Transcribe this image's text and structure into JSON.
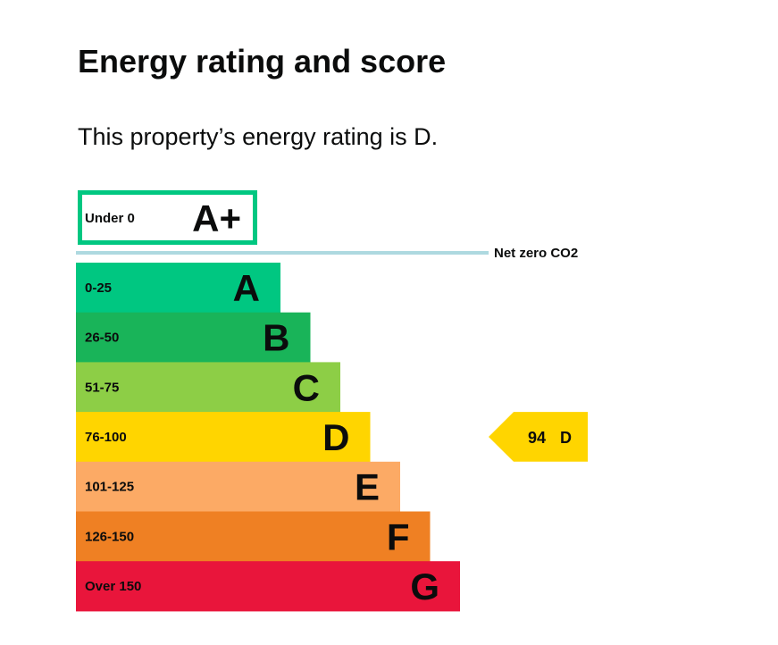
{
  "page": {
    "title": "Energy rating and score",
    "intro": "This property’s energy rating is D."
  },
  "chart_data": {
    "type": "bar",
    "title": "",
    "bands": [
      {
        "range": "Under 0",
        "letter": "A+",
        "color": "#00c781",
        "style": "outline"
      },
      {
        "range": "0-25",
        "letter": "A",
        "color": "#00c781"
      },
      {
        "range": "26-50",
        "letter": "B",
        "color": "#19b459"
      },
      {
        "range": "51-75",
        "letter": "C",
        "color": "#8dce46"
      },
      {
        "range": "76-100",
        "letter": "D",
        "color": "#ffd500"
      },
      {
        "range": "101-125",
        "letter": "E",
        "color": "#fcaa65"
      },
      {
        "range": "126-150",
        "letter": "F",
        "color": "#ef8023"
      },
      {
        "range": "Over 150",
        "letter": "G",
        "color": "#e9153b"
      }
    ],
    "net_zero": {
      "label": "Net zero CO2",
      "color": "#aed9e0"
    },
    "current": {
      "score": "94",
      "letter": "D",
      "color": "#ffd500"
    }
  }
}
